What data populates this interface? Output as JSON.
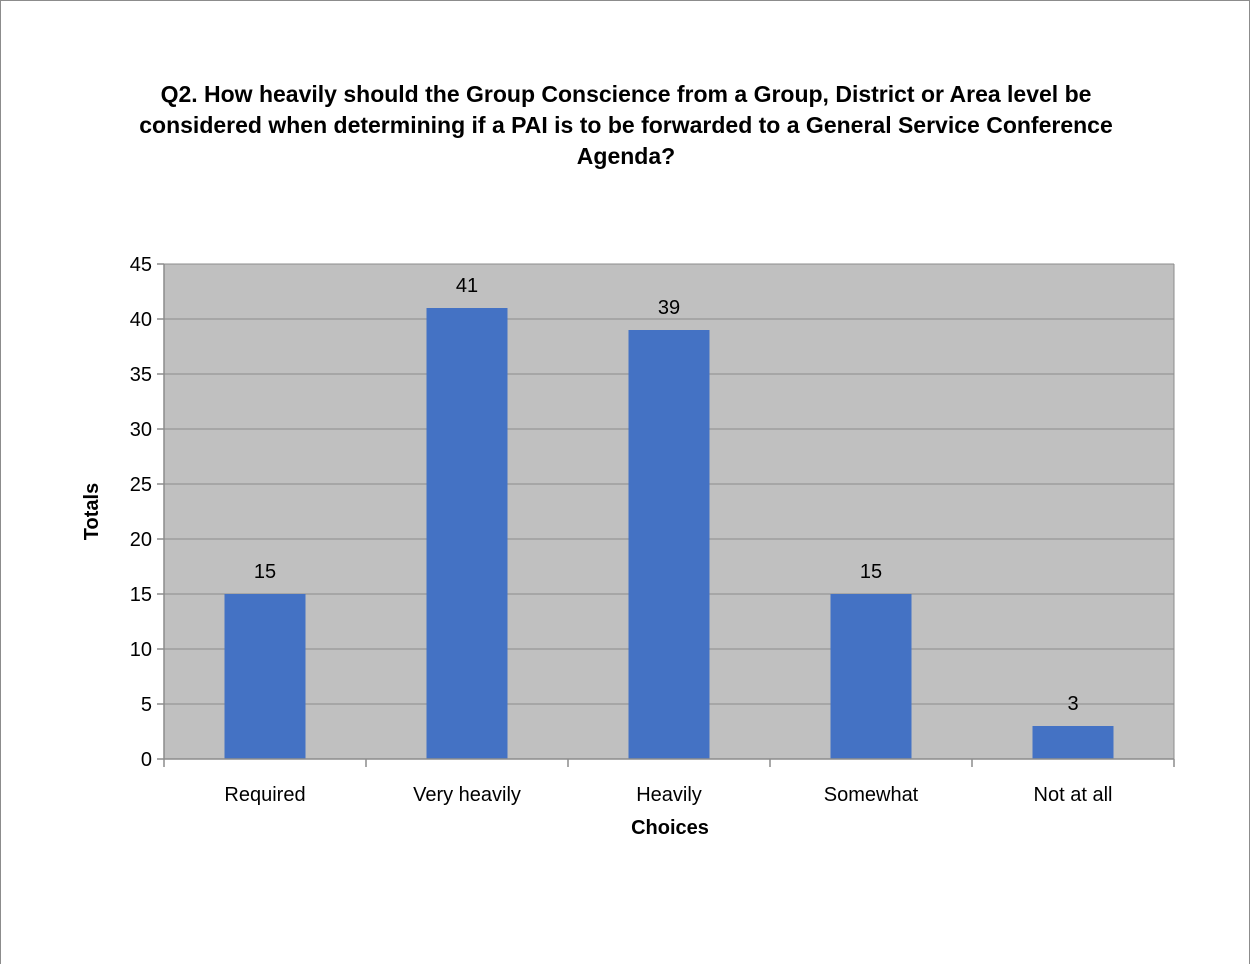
{
  "chart_data": {
    "type": "bar",
    "title": "Q2. How heavily should the Group Conscience from a Group, District or Area level be considered when determining if a PAI is to be forwarded to a General Service Conference Agenda?",
    "xlabel": "Choices",
    "ylabel": "Totals",
    "categories": [
      "Required",
      "Very heavily",
      "Heavily",
      "Somewhat",
      "Not at all"
    ],
    "values": [
      15,
      41,
      39,
      15,
      3
    ],
    "ylim": [
      0,
      45
    ],
    "yticks": [
      0,
      5,
      10,
      15,
      20,
      25,
      30,
      35,
      40,
      45
    ],
    "grid": true,
    "legend": "none",
    "data_labels": true,
    "colors": {
      "bar": "#4472C4",
      "plot_background": "#C0C0C0",
      "gridline": "#8C8C8C",
      "axis": "#8C8C8C"
    }
  }
}
